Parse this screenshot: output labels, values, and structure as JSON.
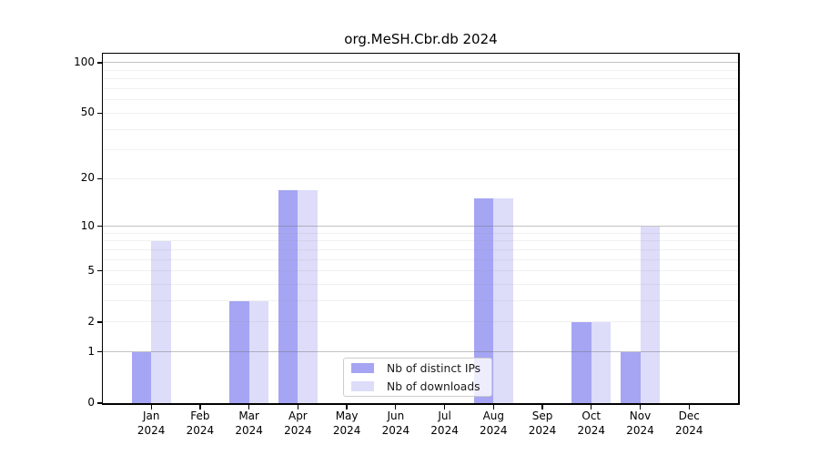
{
  "chart_data": {
    "type": "bar",
    "title": "org.MeSH.Cbr.db 2024",
    "y_scale": "log1p",
    "ylim": [
      0,
      113
    ],
    "yticks": [
      100,
      50,
      20,
      10,
      5,
      2,
      1,
      0
    ],
    "major_gridlines": [
      1,
      10,
      100
    ],
    "minor_gridlines": [
      2,
      3,
      4,
      5,
      6,
      7,
      8,
      9,
      20,
      30,
      40,
      50,
      60,
      70,
      80,
      90
    ],
    "categories": [
      "Jan",
      "Feb",
      "Mar",
      "Apr",
      "May",
      "Jun",
      "Jul",
      "Aug",
      "Sep",
      "Oct",
      "Nov",
      "Dec"
    ],
    "year": "2024",
    "series": [
      {
        "name": "Nb of distinct IPs",
        "color": "#a5a5f4",
        "values": [
          1,
          0,
          3,
          17,
          0,
          0,
          0,
          15,
          0,
          2,
          1,
          0
        ]
      },
      {
        "name": "Nb of downloads",
        "color": "#dddcf9",
        "values": [
          8,
          0,
          3,
          17,
          0,
          0,
          0,
          15,
          0,
          2,
          10,
          0
        ]
      }
    ],
    "legend": {
      "position": "lower center"
    },
    "colors": {
      "major_grid": "rgba(110,110,110,0.42)",
      "minor_grid": "rgba(150,150,150,0.14)",
      "axis": "#000000",
      "text": "#000000",
      "background": "#ffffff"
    }
  }
}
